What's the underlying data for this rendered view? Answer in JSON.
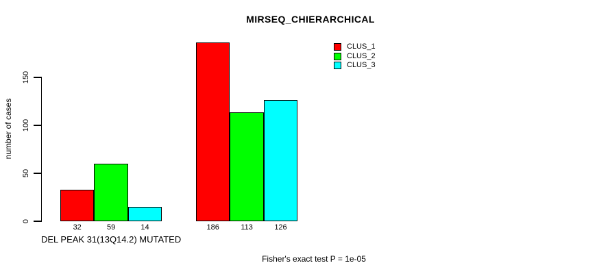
{
  "chart_data": {
    "type": "bar",
    "title": "MIRSEQ_CHIERARCHICAL",
    "ylabel": "number of cases",
    "xlabel": "DEL PEAK 31(13Q14.2) MUTATED",
    "categories": [
      "DEL PEAK 31(13Q14.2) MUTATED",
      ""
    ],
    "yticks": [
      0,
      50,
      100,
      150
    ],
    "series": [
      {
        "name": "CLUS_1",
        "color": "#ff0000",
        "values": [
          32,
          186
        ]
      },
      {
        "name": "CLUS_2",
        "color": "#00ff00",
        "values": [
          59,
          113
        ]
      },
      {
        "name": "CLUS_3",
        "color": "#00ffff",
        "values": [
          14,
          126
        ]
      }
    ],
    "bar_value_labels": [
      [
        32,
        59,
        14
      ],
      [
        186,
        113,
        126
      ]
    ],
    "legend_position": "top-right",
    "grid": false,
    "annotation": "Fisher's exact test P = 1e-05",
    "axis_color": "#000000",
    "background_color": "#ffffff"
  }
}
